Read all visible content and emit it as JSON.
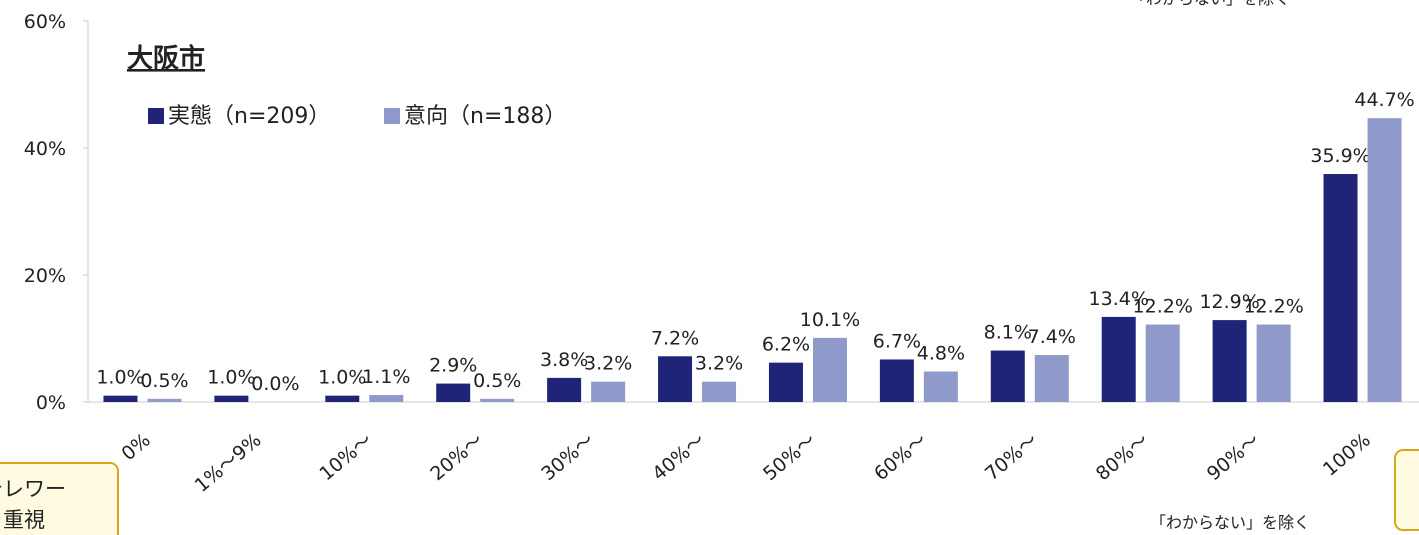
{
  "chart_data": {
    "type": "bar",
    "title": "大阪市",
    "categories": [
      "0%",
      "1%～9%",
      "10%～",
      "20%～",
      "30%～",
      "40%～",
      "50%～",
      "60%～",
      "70%～",
      "80%～",
      "90%～",
      "100%"
    ],
    "series": [
      {
        "name": "実態（n=209）",
        "color": "#1f2478",
        "values": [
          1.0,
          1.0,
          1.0,
          2.9,
          3.8,
          7.2,
          6.2,
          6.7,
          8.1,
          13.4,
          12.9,
          35.9
        ],
        "value_labels": [
          "1.0%",
          "1.0%",
          "1.0%",
          "2.9%",
          "3.8%",
          "7.2%",
          "6.2%",
          "6.7%",
          "8.1%",
          "13.4%",
          "12.9%",
          "35.9%"
        ]
      },
      {
        "name": "意向（n=188）",
        "color": "#8f9acb",
        "values": [
          0.5,
          0.0,
          1.1,
          0.5,
          3.2,
          3.2,
          10.1,
          4.8,
          7.4,
          12.2,
          12.2,
          44.7
        ],
        "value_labels": [
          "0.5%",
          "0.0%",
          "1.1%",
          "0.5%",
          "3.2%",
          "3.2%",
          "10.1%",
          "4.8%",
          "7.4%",
          "12.2%",
          "12.2%",
          "44.7%"
        ]
      }
    ],
    "ylim": [
      0,
      60
    ],
    "yticks": [
      {
        "value": 0,
        "label": "0%"
      },
      {
        "value": 20,
        "label": "20%"
      },
      {
        "value": 40,
        "label": "40%"
      },
      {
        "value": 60,
        "label": "60%"
      }
    ],
    "note_top": "「わからない」を除く",
    "note_bottom": "「わからない」を除く",
    "side_box": [
      "テレワー",
      "ク重視"
    ]
  }
}
